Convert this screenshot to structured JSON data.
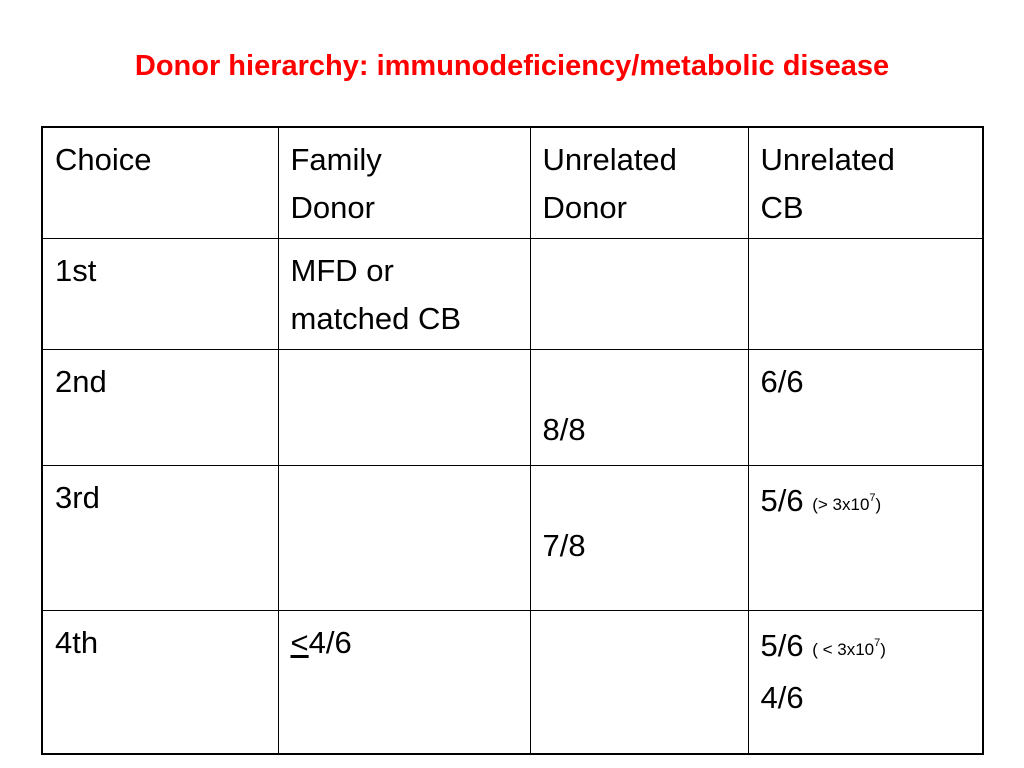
{
  "title": "Donor hierarchy: immunodeficiency/metabolic disease",
  "table": {
    "headers": {
      "choice": "Choice",
      "family": [
        "Family",
        "Donor"
      ],
      "unrelated": [
        "Unrelated",
        "Donor"
      ],
      "cb": [
        "Unrelated",
        "CB"
      ]
    },
    "rows": [
      {
        "choice": "1st",
        "family": [
          "MFD or",
          "matched CB"
        ],
        "unrelated": "",
        "cb": ""
      },
      {
        "choice": "2nd",
        "family": "",
        "unrelated": "8/8",
        "cb": "6/6"
      },
      {
        "choice": "3rd",
        "family": "",
        "unrelated": "7/8",
        "cb": {
          "main": "5/6",
          "note_pre": "(> 3x10",
          "note_exp": "7",
          "note_post": ")"
        }
      },
      {
        "choice": "4th",
        "family": {
          "sym": "<",
          "rest": "4/6"
        },
        "unrelated": "",
        "cb": {
          "main": "5/6",
          "note_pre": "( < 3x10",
          "note_exp": "7",
          "note_post": ")",
          "second": "4/6"
        }
      }
    ]
  }
}
